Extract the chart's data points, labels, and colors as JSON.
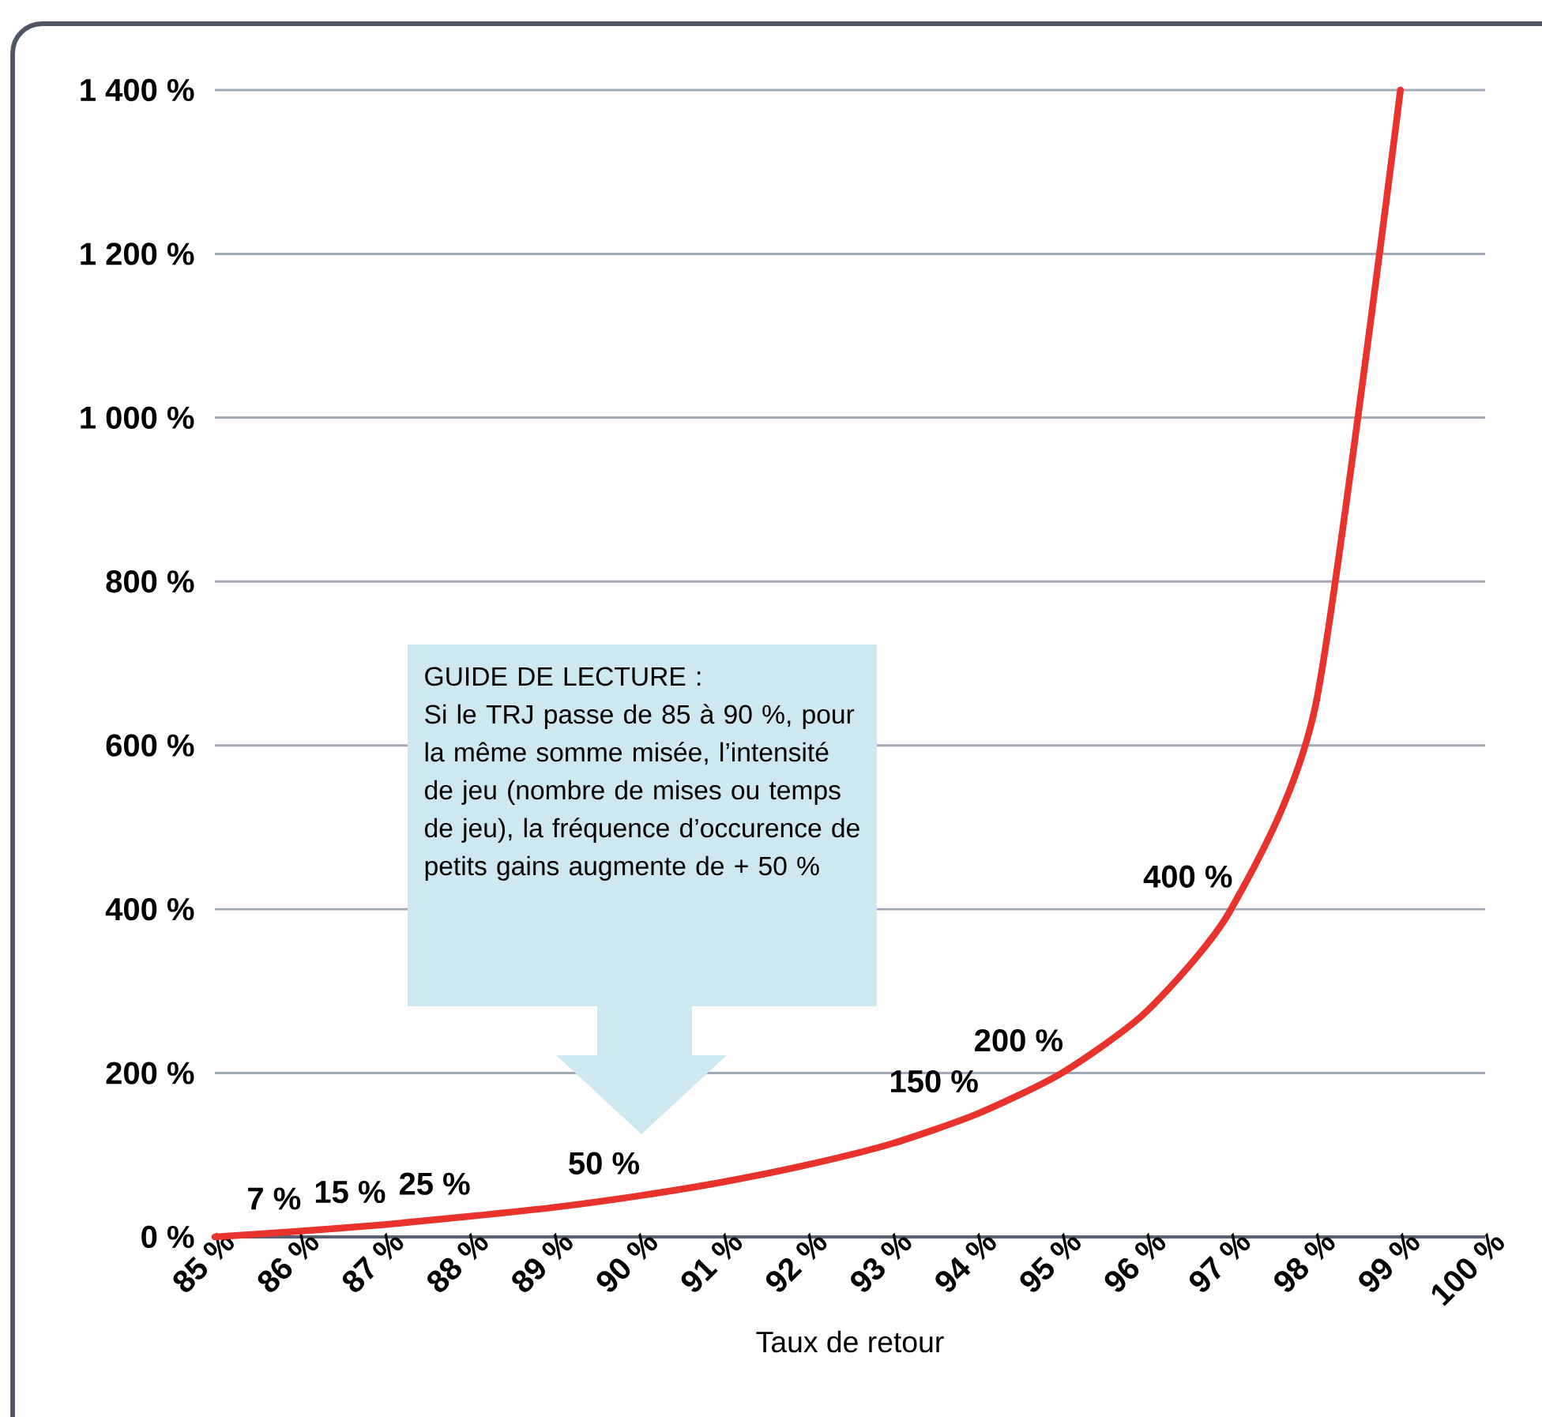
{
  "chart_data": {
    "type": "line",
    "xlabel": "Taux de retour",
    "x": [
      85,
      86,
      87,
      88,
      89,
      90,
      91,
      92,
      93,
      94,
      95,
      96,
      97,
      98,
      99
    ],
    "series": [
      {
        "color": "#e8332d",
        "values": [
          0,
          7,
          15,
          25,
          36,
          50,
          67,
          88,
          114,
          150,
          200,
          275,
          400,
          650,
          1400
        ],
        "value_labels": [
          null,
          "7 %",
          "15 %",
          "25 %",
          null,
          "50 %",
          null,
          null,
          null,
          "150 %",
          "200 %",
          null,
          "400 %",
          null,
          null
        ]
      }
    ],
    "xlim": [
      85,
      100
    ],
    "xticks": [
      {
        "value": 85,
        "label": "85 %"
      },
      {
        "value": 86,
        "label": "86 %"
      },
      {
        "value": 87,
        "label": "87 %"
      },
      {
        "value": 88,
        "label": "88 %"
      },
      {
        "value": 89,
        "label": "89 %"
      },
      {
        "value": 90,
        "label": "90 %"
      },
      {
        "value": 91,
        "label": "91 %"
      },
      {
        "value": 92,
        "label": "92 %"
      },
      {
        "value": 93,
        "label": "93 %"
      },
      {
        "value": 94,
        "label": "94 %"
      },
      {
        "value": 95,
        "label": "95 %"
      },
      {
        "value": 96,
        "label": "96 %"
      },
      {
        "value": 97,
        "label": "97 %"
      },
      {
        "value": 98,
        "label": "98 %"
      },
      {
        "value": 99,
        "label": "99 %"
      },
      {
        "value": 100,
        "label": "100 %"
      }
    ],
    "ylim": [
      0,
      1400
    ],
    "yticks": [
      {
        "value": 0,
        "label": "0 %"
      },
      {
        "value": 200,
        "label": "200 %"
      },
      {
        "value": 400,
        "label": "400 %"
      },
      {
        "value": 600,
        "label": "600 %"
      },
      {
        "value": 800,
        "label": "800 %"
      },
      {
        "value": 1000,
        "label": "1 000 %"
      },
      {
        "value": 1200,
        "label": "1 200 %"
      },
      {
        "value": 1400,
        "label": "1 400 %"
      }
    ],
    "grid": "y",
    "marker": "none",
    "line_style": "solid",
    "annotations": [
      "GUIDE DE LECTURE :",
      "Si le TRJ passe de 85 à 90 %, pour la même somme misée, l’intensité de jeu (nombre de mises ou temps de jeu), la fréquence d’occurence de petits gains augmente de + 50 %"
    ]
  }
}
